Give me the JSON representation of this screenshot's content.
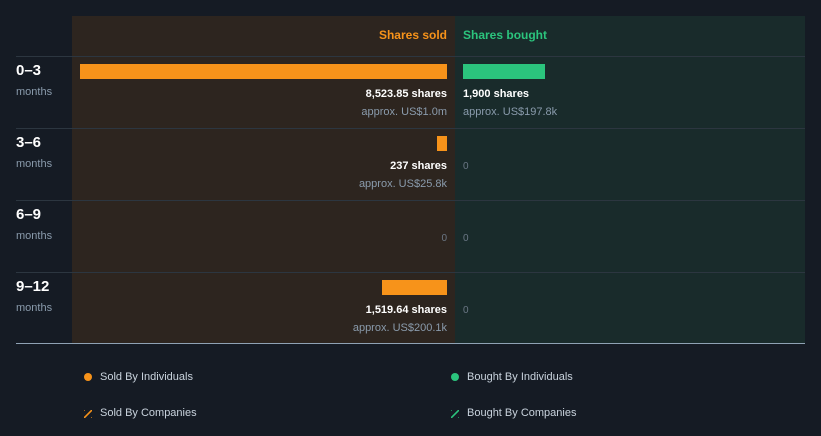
{
  "header": {
    "sold_label": "Shares sold",
    "bought_label": "Shares bought"
  },
  "colors": {
    "sold": "#f7931a",
    "bought": "#2bc47d"
  },
  "rows": [
    {
      "period": "0–3",
      "unit": "months",
      "sold_shares": "8,523.85 shares",
      "sold_approx": "approx. US$1.0m",
      "bought_shares": "1,900 shares",
      "bought_approx": "approx. US$197.8k"
    },
    {
      "period": "3–6",
      "unit": "months",
      "sold_shares": "237 shares",
      "sold_approx": "approx. US$25.8k",
      "bought_zero": "0"
    },
    {
      "period": "6–9",
      "unit": "months",
      "sold_zero": "0",
      "bought_zero": "0"
    },
    {
      "period": "9–12",
      "unit": "months",
      "sold_shares": "1,519.64 shares",
      "sold_approx": "approx. US$200.1k",
      "bought_zero": "0"
    }
  ],
  "legend": {
    "sold_individuals": "Sold By Individuals",
    "bought_individuals": "Bought By Individuals",
    "sold_companies": "Sold By Companies",
    "bought_companies": "Bought By Companies"
  },
  "chart_data": {
    "type": "bar",
    "categories": [
      "0–3",
      "3–6",
      "6–9",
      "9–12"
    ],
    "series": [
      {
        "name": "Shares sold",
        "values": [
          8523.85,
          237,
          0,
          1519.64
        ]
      },
      {
        "name": "Shares bought",
        "values": [
          1900,
          0,
          0,
          0
        ]
      }
    ]
  }
}
